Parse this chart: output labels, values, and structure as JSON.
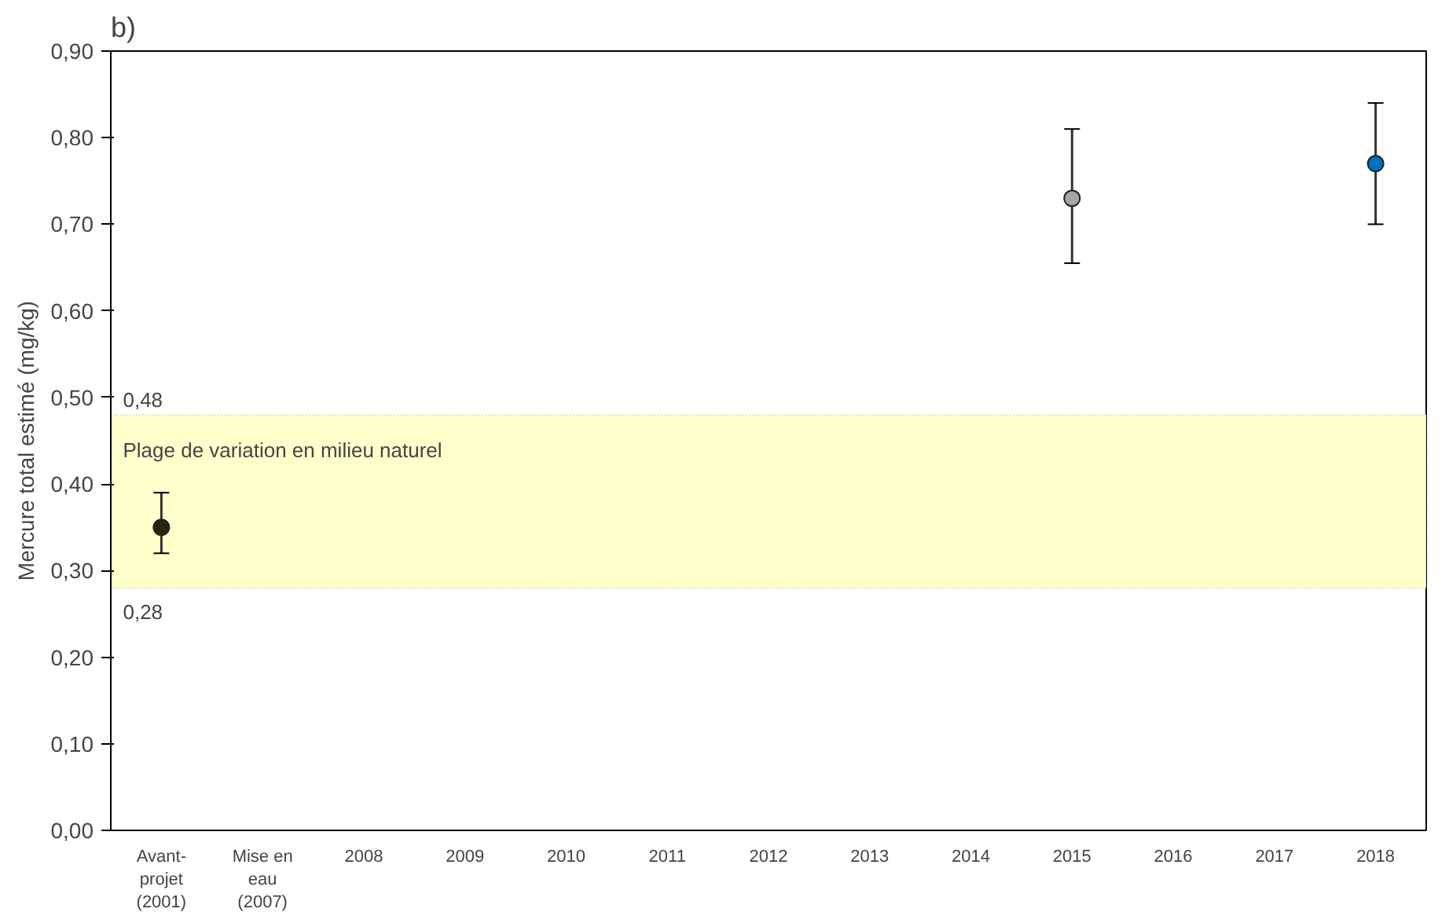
{
  "chart_data": {
    "type": "scatter",
    "title": "b)",
    "ylabel": "Mercure total estimé (mg/kg)",
    "categories": [
      "Avant-\nprojet\n(2001)",
      "Mise en\neau\n(2007)",
      "2008",
      "2009",
      "2010",
      "2011",
      "2012",
      "2013",
      "2014",
      "2015",
      "2016",
      "2017",
      "2018"
    ],
    "series": [
      {
        "values": [
          0.35,
          null,
          null,
          null,
          null,
          null,
          null,
          null,
          null,
          0.73,
          null,
          null,
          0.77
        ],
        "colors": [
          "#262610",
          null,
          null,
          null,
          null,
          null,
          null,
          null,
          null,
          "#a6a6a6",
          null,
          null,
          "#0070c0"
        ],
        "errors": [
          [
            0.32,
            0.39
          ],
          null,
          null,
          null,
          null,
          null,
          null,
          null,
          null,
          [
            0.655,
            0.81
          ],
          null,
          null,
          [
            0.7,
            0.84
          ]
        ]
      }
    ],
    "ylim": [
      0,
      0.9
    ],
    "yticks": [
      {
        "value": 0,
        "label": "0,00"
      },
      {
        "value": 0.1,
        "label": "0,10"
      },
      {
        "value": 0.2,
        "label": "0,20"
      },
      {
        "value": 0.3,
        "label": "0,30"
      },
      {
        "value": 0.4,
        "label": "0,40"
      },
      {
        "value": 0.5,
        "label": "0,50"
      },
      {
        "value": 0.6,
        "label": "0,60"
      },
      {
        "value": 0.7,
        "label": "0,70"
      },
      {
        "value": 0.8,
        "label": "0,80"
      },
      {
        "value": 0.9,
        "label": "0,90"
      }
    ],
    "bands": [
      {
        "axis": "y",
        "from": 0.28,
        "to": 0.48,
        "label": "Plage de variation en milieu naturel",
        "color": "#ffffcc"
      }
    ],
    "annotations": [
      {
        "text": "0,48",
        "y": 0.48
      },
      {
        "text": "0,28",
        "y": 0.28
      }
    ],
    "marker": "circle",
    "grid": false
  }
}
